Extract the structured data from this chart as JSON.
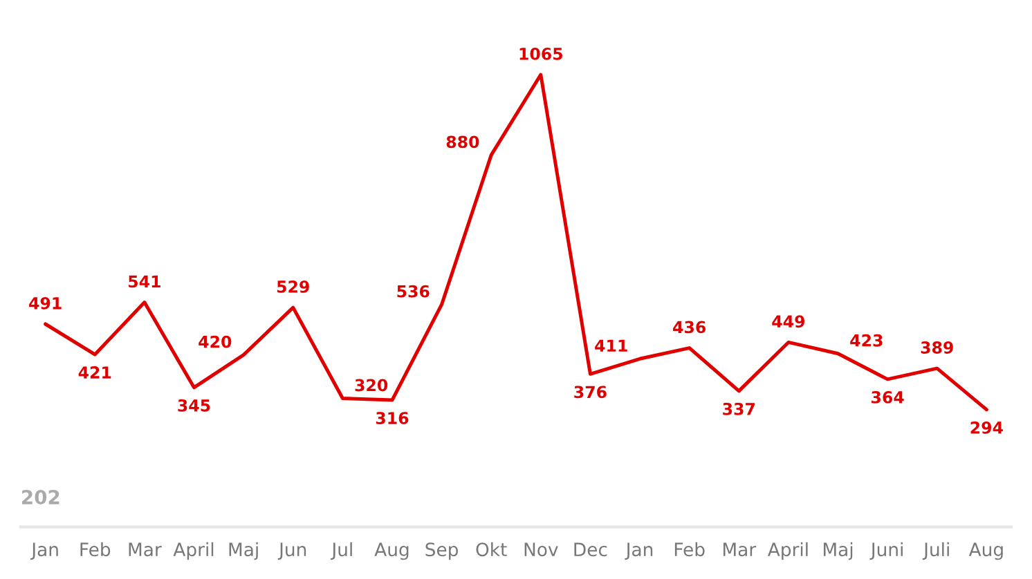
{
  "chart_data": {
    "type": "line",
    "categories": [
      "Jan",
      "Feb",
      "Mar",
      "April",
      "Maj",
      "Jun",
      "Jul",
      "Aug",
      "Sep",
      "Okt",
      "Nov",
      "Dec",
      "Jan",
      "Feb",
      "Mar",
      "April",
      "Maj",
      "Juni",
      "Juli",
      "Aug"
    ],
    "series": [
      {
        "color": "#e00000",
        "values": [
          491,
          421,
          541,
          345,
          420,
          529,
          320,
          316,
          536,
          880,
          1065,
          376,
          411,
          436,
          337,
          449,
          423,
          364,
          389,
          294
        ]
      }
    ],
    "marker": "none",
    "data_labels": true,
    "annotations": [
      "202"
    ]
  }
}
